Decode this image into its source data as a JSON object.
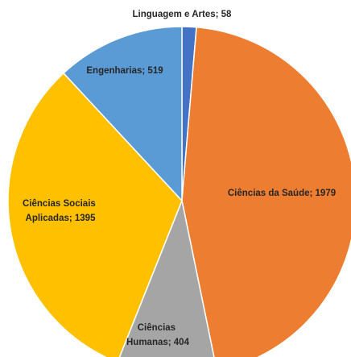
{
  "chart_data": {
    "type": "pie",
    "values": [
      58,
      1979,
      404,
      1395,
      519
    ],
    "value_labels": [
      "Linguagem e Artes; 58",
      "Ciências da Saúde; 1979",
      "Ciências Humanas; 404",
      "Ciências Sociais Aplicadas; 1395",
      "Engenharias; 519"
    ],
    "colors": [
      "#4472c4",
      "#ed7d31",
      "#a5a5a5",
      "#ffc000",
      "#5b9bd5"
    ]
  }
}
